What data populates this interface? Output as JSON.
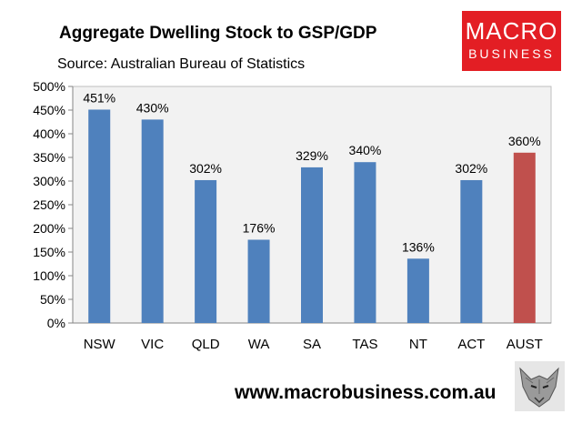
{
  "header": {
    "title": "Aggregate Dwelling Stock to GSP/GDP",
    "source": "Source: Australian Bureau of Statistics"
  },
  "logo": {
    "line1": "MACRO",
    "line2": "BUSINESS",
    "color": "#e31e24"
  },
  "footer": {
    "url": "www.macrobusiness.com.au"
  },
  "chart_data": {
    "type": "bar",
    "title": "Aggregate Dwelling Stock to GSP/GDP",
    "categories": [
      "NSW",
      "VIC",
      "QLD",
      "WA",
      "SA",
      "TAS",
      "NT",
      "ACT",
      "AUST"
    ],
    "values": [
      451,
      430,
      302,
      176,
      329,
      340,
      136,
      302,
      360
    ],
    "data_labels": [
      "451%",
      "430%",
      "302%",
      "176%",
      "329%",
      "340%",
      "136%",
      "302%",
      "360%"
    ],
    "bar_colors": [
      "#4f81bd",
      "#4f81bd",
      "#4f81bd",
      "#4f81bd",
      "#4f81bd",
      "#4f81bd",
      "#4f81bd",
      "#4f81bd",
      "#c0504d"
    ],
    "ylim": [
      0,
      500
    ],
    "yticks": [
      0,
      50,
      100,
      150,
      200,
      250,
      300,
      350,
      400,
      450,
      500
    ],
    "ytick_labels": [
      "0%",
      "50%",
      "100%",
      "150%",
      "200%",
      "250%",
      "300%",
      "350%",
      "400%",
      "450%",
      "500%"
    ],
    "grid": false,
    "plot_background": "#f2f2f2"
  }
}
